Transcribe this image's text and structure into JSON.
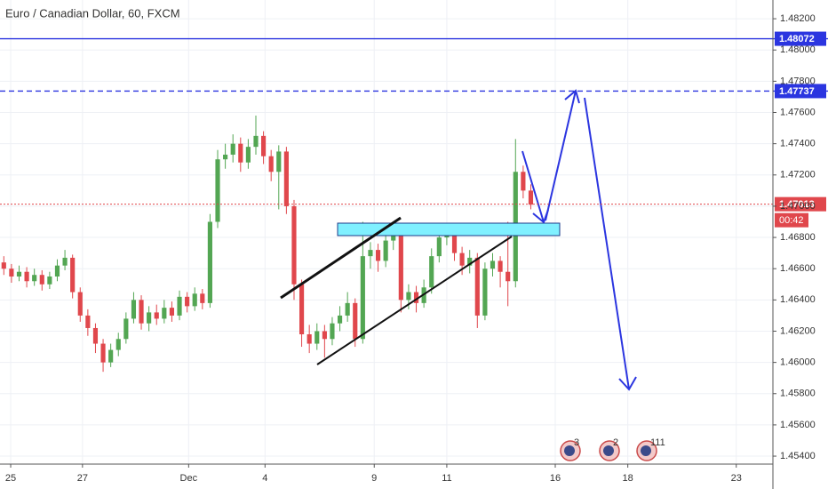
{
  "chart_data": {
    "type": "candlestick",
    "title": "Euro / Canadian Dollar, 60, FXCM",
    "up_color": "#53a653",
    "down_color": "#e0474c",
    "grid": true,
    "xlim": [
      -0.5,
      100.7
    ],
    "ylim": [
      1.45349,
      1.4832
    ],
    "xticks": [
      {
        "value": 0.9,
        "label": "25"
      },
      {
        "value": 10.3,
        "label": "27"
      },
      {
        "value": 24.2,
        "label": "Dec"
      },
      {
        "value": 34.2,
        "label": "4"
      },
      {
        "value": 48.5,
        "label": "9"
      },
      {
        "value": 58.0,
        "label": "11"
      },
      {
        "value": 72.2,
        "label": "16"
      },
      {
        "value": 81.7,
        "label": "18"
      },
      {
        "value": 95.9,
        "label": "23"
      }
    ],
    "yticks": [
      {
        "value": 1.482,
        "label": "1.48200"
      },
      {
        "value": 1.48,
        "label": "1.48000"
      },
      {
        "value": 1.478,
        "label": "1.47800"
      },
      {
        "value": 1.476,
        "label": "1.47600"
      },
      {
        "value": 1.474,
        "label": "1.47400"
      },
      {
        "value": 1.472,
        "label": "1.47200"
      },
      {
        "value": 1.47,
        "label": "1.47000"
      },
      {
        "value": 1.468,
        "label": "1.46800"
      },
      {
        "value": 1.466,
        "label": "1.46600"
      },
      {
        "value": 1.464,
        "label": "1.46400"
      },
      {
        "value": 1.462,
        "label": "1.46200"
      },
      {
        "value": 1.46,
        "label": "1.46000"
      },
      {
        "value": 1.458,
        "label": "1.45800"
      },
      {
        "value": 1.456,
        "label": "1.45600"
      },
      {
        "value": 1.454,
        "label": "1.45400"
      }
    ],
    "open": [
      1.4664,
      1.466,
      1.4655,
      1.4658,
      1.4652,
      1.4656,
      1.465,
      1.4655,
      1.4662,
      1.4667,
      1.4645,
      1.463,
      1.4622,
      1.4612,
      1.46,
      1.4608,
      1.4615,
      1.4628,
      1.464,
      1.4625,
      1.4632,
      1.4628,
      1.4635,
      1.463,
      1.4642,
      1.4636,
      1.4644,
      1.4638,
      1.469,
      1.473,
      1.4733,
      1.474,
      1.4728,
      1.4738,
      1.4745,
      1.4732,
      1.4722,
      1.4735,
      1.47,
      1.465,
      1.4618,
      1.4612,
      1.462,
      1.4615,
      1.4625,
      1.463,
      1.4638,
      1.4615,
      1.4668,
      1.4672,
      1.4665,
      1.4678,
      1.4683,
      1.464,
      1.4645,
      1.4638,
      1.4648,
      1.4668,
      1.468,
      1.4684,
      1.467,
      1.4662,
      1.4667,
      1.463,
      1.466,
      1.4665,
      1.4658,
      1.4652,
      1.4722,
      1.471
    ],
    "high": [
      1.4668,
      1.4663,
      1.4662,
      1.4661,
      1.466,
      1.4659,
      1.4658,
      1.4666,
      1.4672,
      1.4669,
      1.4648,
      1.4634,
      1.4625,
      1.4615,
      1.4612,
      1.4619,
      1.4632,
      1.4645,
      1.4643,
      1.4636,
      1.4637,
      1.464,
      1.4639,
      1.4646,
      1.4645,
      1.4648,
      1.4647,
      1.4695,
      1.4736,
      1.474,
      1.4746,
      1.4744,
      1.4743,
      1.4758,
      1.4748,
      1.4736,
      1.4739,
      1.4738,
      1.4704,
      1.4653,
      1.4624,
      1.4625,
      1.4624,
      1.4629,
      1.4636,
      1.4645,
      1.4641,
      1.469,
      1.4677,
      1.4676,
      1.4682,
      1.4688,
      1.4686,
      1.465,
      1.4649,
      1.4653,
      1.4673,
      1.4685,
      1.4688,
      1.4686,
      1.4674,
      1.4672,
      1.467,
      1.4664,
      1.467,
      1.4668,
      1.469,
      1.4743,
      1.4726,
      1.4714
    ],
    "low": [
      1.4656,
      1.4651,
      1.4652,
      1.4648,
      1.4649,
      1.4646,
      1.4647,
      1.4652,
      1.4659,
      1.4641,
      1.4626,
      1.4617,
      1.4606,
      1.4594,
      1.4597,
      1.4604,
      1.4612,
      1.4625,
      1.4621,
      1.462,
      1.4624,
      1.4625,
      1.4626,
      1.4627,
      1.4632,
      1.4633,
      1.4634,
      1.4635,
      1.4686,
      1.4724,
      1.4728,
      1.4722,
      1.4724,
      1.4733,
      1.4727,
      1.4716,
      1.4698,
      1.4695,
      1.464,
      1.461,
      1.4606,
      1.4608,
      1.4603,
      1.4611,
      1.462,
      1.4626,
      1.461,
      1.4612,
      1.466,
      1.4658,
      1.4661,
      1.4672,
      1.4632,
      1.4634,
      1.4632,
      1.4635,
      1.4644,
      1.4664,
      1.4675,
      1.4665,
      1.4656,
      1.4657,
      1.4622,
      1.4627,
      1.4655,
      1.4648,
      1.4636,
      1.4648,
      1.4705,
      1.4698
    ],
    "close": [
      1.466,
      1.4655,
      1.4658,
      1.4652,
      1.4656,
      1.465,
      1.4655,
      1.4662,
      1.4667,
      1.4645,
      1.463,
      1.4622,
      1.4612,
      1.46,
      1.4608,
      1.4615,
      1.4628,
      1.464,
      1.4625,
      1.4632,
      1.4628,
      1.4635,
      1.463,
      1.4642,
      1.4636,
      1.4644,
      1.4638,
      1.469,
      1.473,
      1.4733,
      1.474,
      1.4728,
      1.4738,
      1.4745,
      1.4732,
      1.4722,
      1.4735,
      1.47,
      1.465,
      1.4618,
      1.4612,
      1.462,
      1.4615,
      1.4625,
      1.463,
      1.4638,
      1.4615,
      1.4668,
      1.4672,
      1.4665,
      1.4678,
      1.4683,
      1.464,
      1.4645,
      1.4638,
      1.4648,
      1.4668,
      1.468,
      1.4684,
      1.467,
      1.4662,
      1.4667,
      1.463,
      1.466,
      1.4665,
      1.4658,
      1.4652,
      1.4722,
      1.471,
      1.4701
    ],
    "levels": [
      {
        "value": 1.48072,
        "label": "1.48072",
        "color": "#2b35e0",
        "style": "solid"
      },
      {
        "value": 1.47737,
        "label": "1.47737",
        "color": "#2b35e0",
        "style": "dashed"
      },
      {
        "value": 1.47013,
        "label": "1.47013",
        "color": "#e0474c",
        "style": "dotted"
      }
    ],
    "countdown": "00:42",
    "events": [
      "3",
      "2",
      "111"
    ]
  }
}
